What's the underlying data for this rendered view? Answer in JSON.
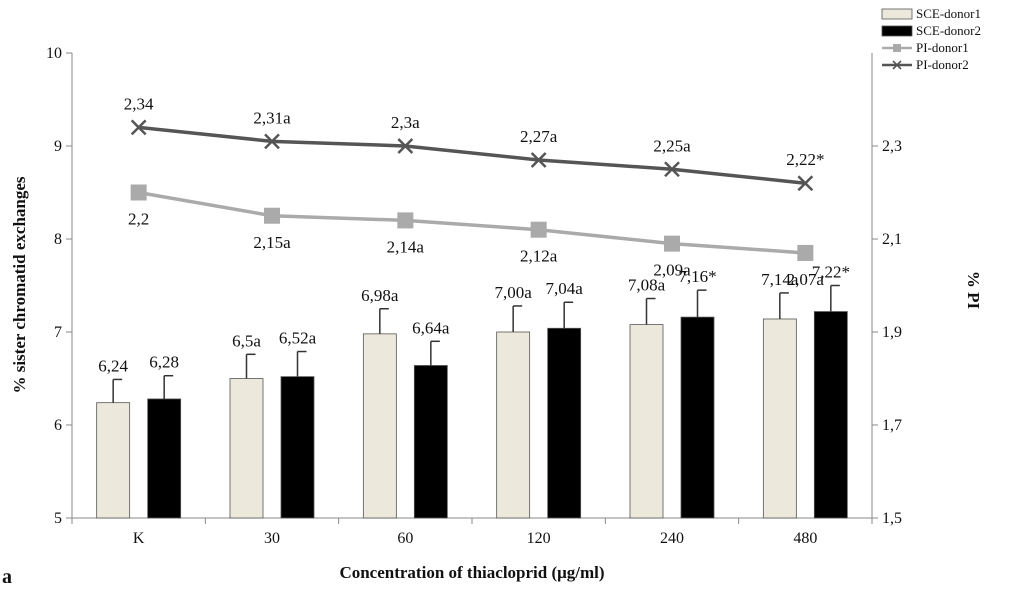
{
  "chart_data": {
    "type": "bar+line",
    "xlabel": "Concentration of thiacloprid (μg/ml)",
    "ylabel_left": "% sister chromatid exchanges",
    "ylabel_right": "% PI",
    "categories": [
      "K",
      "30",
      "60",
      "120",
      "240",
      "480"
    ],
    "ylim_left": [
      5,
      10
    ],
    "yticks_left": [
      "5",
      "6",
      "7",
      "8",
      "9",
      "10"
    ],
    "ylim_right": [
      1.5,
      2.5
    ],
    "yticks_right": [
      "1,5",
      "1,7",
      "1,9",
      "2,1",
      "2,3"
    ],
    "grid": false,
    "legend_position": "top-right",
    "bar_series": [
      {
        "name": "SCE-donor1",
        "color": "#ece9dc",
        "values": [
          6.24,
          6.5,
          6.98,
          7.0,
          7.08,
          7.14
        ],
        "errors": [
          0.25,
          0.26,
          0.27,
          0.28,
          0.28,
          0.28
        ],
        "labels": [
          "6,24",
          "6,5a",
          "6,98a",
          "7,00a",
          "7,08a",
          "7,14a"
        ]
      },
      {
        "name": "SCE-donor2",
        "color": "#000000",
        "values": [
          6.28,
          6.52,
          6.64,
          7.04,
          7.16,
          7.22
        ],
        "errors": [
          0.25,
          0.27,
          0.26,
          0.28,
          0.29,
          0.28
        ],
        "labels": [
          "6,28",
          "6,52a",
          "6,64a",
          "7,04a",
          "7,16*",
          "7,22*"
        ]
      }
    ],
    "line_series": [
      {
        "name": "PI-donor1",
        "color": "#aaaaaa",
        "marker": "square",
        "values": [
          2.2,
          2.15,
          2.14,
          2.12,
          2.09,
          2.07
        ],
        "labels": [
          "2,2",
          "2,15a",
          "2,14a",
          "2,12a",
          "2,09a",
          "2,07a"
        ]
      },
      {
        "name": "PI-donor2",
        "color": "#555555",
        "marker": "x",
        "values": [
          2.34,
          2.31,
          2.3,
          2.27,
          2.25,
          2.22
        ],
        "labels": [
          "2,34",
          "2,31a",
          "2,3a",
          "2,27a",
          "2,25a",
          "2,22*"
        ]
      }
    ]
  },
  "corner_text": "a"
}
